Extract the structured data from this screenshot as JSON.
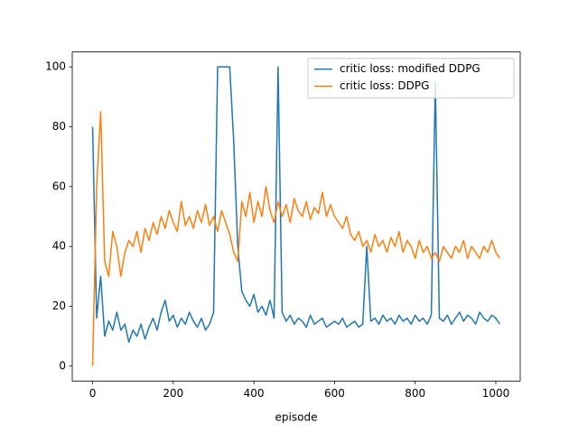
{
  "chart_data": {
    "type": "line",
    "xlabel": "episode",
    "x": [
      0,
      10,
      20,
      30,
      40,
      50,
      60,
      70,
      80,
      90,
      100,
      110,
      120,
      130,
      140,
      150,
      160,
      170,
      180,
      190,
      200,
      210,
      220,
      230,
      240,
      250,
      260,
      270,
      280,
      290,
      300,
      310,
      320,
      330,
      340,
      350,
      360,
      370,
      380,
      390,
      400,
      410,
      420,
      430,
      440,
      450,
      460,
      470,
      480,
      490,
      500,
      510,
      520,
      530,
      540,
      550,
      560,
      570,
      580,
      590,
      600,
      610,
      620,
      630,
      640,
      650,
      660,
      670,
      680,
      690,
      700,
      710,
      720,
      730,
      740,
      750,
      760,
      770,
      780,
      790,
      800,
      810,
      820,
      830,
      840,
      850,
      860,
      870,
      880,
      890,
      900,
      910,
      920,
      930,
      940,
      950,
      960,
      970,
      980,
      990,
      1000,
      1010
    ],
    "series": [
      {
        "name": "critic loss: modified DDPG",
        "color": "#1f77b4",
        "values": [
          80,
          16,
          30,
          10,
          15,
          12,
          18,
          12,
          14,
          8,
          12,
          10,
          14,
          9,
          13,
          16,
          12,
          18,
          22,
          15,
          17,
          13,
          16,
          14,
          18,
          15,
          13,
          16,
          12,
          14,
          18,
          100,
          100,
          100,
          100,
          75,
          40,
          25,
          22,
          20,
          24,
          18,
          20,
          17,
          22,
          16,
          100,
          18,
          15,
          17,
          14,
          16,
          15,
          13,
          17,
          14,
          15,
          16,
          13,
          14,
          15,
          14,
          16,
          13,
          14,
          15,
          13,
          14,
          40,
          15,
          16,
          14,
          17,
          15,
          16,
          14,
          17,
          15,
          16,
          14,
          17,
          15,
          16,
          14,
          17,
          95,
          16,
          15,
          17,
          14,
          16,
          18,
          15,
          17,
          16,
          14,
          18,
          16,
          15,
          17,
          16,
          14
        ]
      },
      {
        "name": "critic loss: DDPG",
        "color": "#ff7f0e",
        "values": [
          0,
          60,
          85,
          35,
          30,
          45,
          40,
          30,
          38,
          42,
          40,
          45,
          38,
          46,
          42,
          48,
          44,
          50,
          46,
          52,
          48,
          45,
          55,
          47,
          50,
          46,
          52,
          48,
          54,
          47,
          50,
          45,
          52,
          48,
          44,
          38,
          35,
          55,
          50,
          58,
          48,
          55,
          50,
          60,
          52,
          48,
          55,
          50,
          54,
          48,
          56,
          52,
          50,
          55,
          49,
          53,
          51,
          58,
          50,
          54,
          50,
          48,
          46,
          50,
          44,
          42,
          45,
          40,
          42,
          38,
          44,
          40,
          42,
          38,
          43,
          40,
          45,
          38,
          42,
          40,
          36,
          42,
          38,
          40,
          36,
          38,
          35,
          40,
          38,
          36,
          40,
          38,
          42,
          36,
          40,
          38,
          36,
          40,
          38,
          42,
          38,
          36
        ]
      }
    ],
    "xlim": [
      -50.5,
      1060.5
    ],
    "ylim": [
      -5,
      105
    ],
    "xticks": [
      0,
      200,
      400,
      600,
      800,
      1000
    ],
    "yticks": [
      0,
      20,
      40,
      60,
      80,
      100
    ],
    "legend": "upper right"
  }
}
